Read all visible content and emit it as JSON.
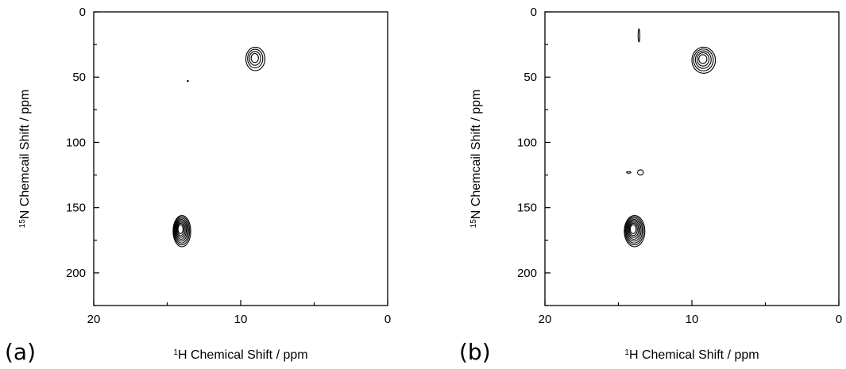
{
  "chart_data": [
    {
      "type": "contour",
      "panel_label": "(a)",
      "xlabel_sup": "1",
      "xlabel": "H Chemical Shift / ppm",
      "ylabel_sup": "15",
      "ylabel": "N Chemcail Shift / ppm",
      "xlim": [
        20,
        0
      ],
      "ylim": [
        0,
        225
      ],
      "x_ticks": [
        20,
        10,
        0
      ],
      "y_ticks": [
        0,
        50,
        100,
        150,
        200
      ],
      "peaks": [
        {
          "x": 9.0,
          "y": 36,
          "levels": 4,
          "rx": 0.65,
          "ry": 9
        },
        {
          "x": 14.0,
          "y": 168,
          "levels": 8,
          "rx": 0.6,
          "ry": 12
        },
        {
          "x": 13.6,
          "y": 53,
          "levels": 1,
          "rx": 0.03,
          "ry": 0.5
        }
      ]
    },
    {
      "type": "contour",
      "panel_label": "(b)",
      "xlabel_sup": "1",
      "xlabel": "H Chemical Shift / ppm",
      "ylabel_sup": "15",
      "ylabel": "N Chemcail Shift / ppm",
      "xlim": [
        20,
        0
      ],
      "ylim": [
        0,
        225
      ],
      "x_ticks": [
        20,
        10,
        0
      ],
      "y_ticks": [
        0,
        50,
        100,
        150,
        200
      ],
      "peaks": [
        {
          "x": 9.2,
          "y": 37,
          "levels": 5,
          "rx": 0.8,
          "ry": 10
        },
        {
          "x": 13.9,
          "y": 168,
          "levels": 8,
          "rx": 0.7,
          "ry": 12
        },
        {
          "x": 13.6,
          "y": 18,
          "levels": 1,
          "rx": 0.06,
          "ry": 5
        },
        {
          "x": 13.5,
          "y": 123,
          "levels": 1,
          "rx": 0.2,
          "ry": 2
        },
        {
          "x": 14.3,
          "y": 123,
          "levels": 1,
          "rx": 0.15,
          "ry": 0.6
        }
      ]
    }
  ]
}
